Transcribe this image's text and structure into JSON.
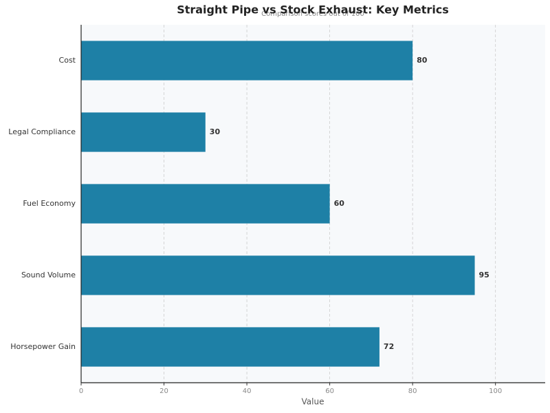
{
  "chart_data": {
    "type": "barh",
    "title": "Straight Pipe vs Stock Exhaust: Key Metrics",
    "subtitle": "Comparison scores out of 100",
    "categories": [
      "Cost",
      "Legal Compliance",
      "Fuel Economy",
      "Sound Volume",
      "Horsepower Gain"
    ],
    "values": [
      80,
      30,
      60,
      95,
      72
    ],
    "color": "#1e80a6",
    "xlabel": "Value",
    "xlim": [
      0,
      112
    ],
    "xticks": [
      0,
      20,
      40,
      60,
      80,
      100
    ],
    "grid": true
  }
}
